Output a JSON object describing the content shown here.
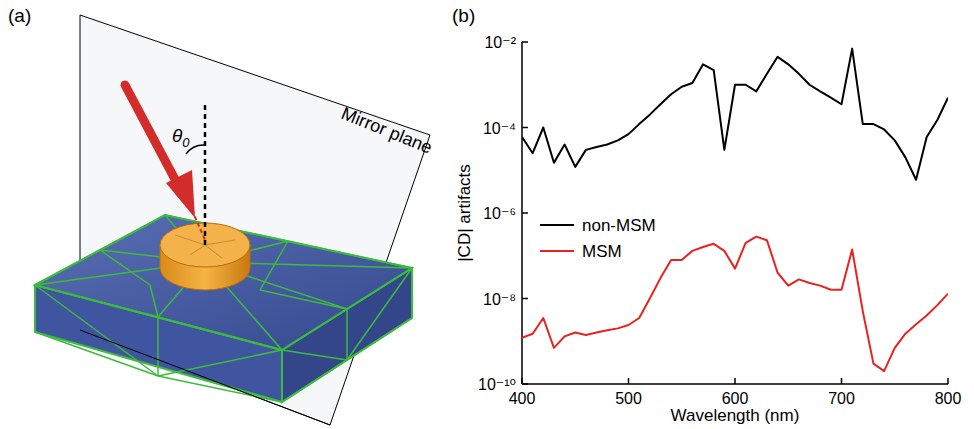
{
  "diagram": {
    "panel_label": "(a)",
    "labels": {
      "angle_symbol": "θ",
      "angle_subscript": "0",
      "mirror": "Mirror plane"
    }
  },
  "chart_data": {
    "type": "line",
    "title": "(b)",
    "x_label": "Wavelength (nm)",
    "y_label": "|CD| artifacts",
    "x": [
      400,
      410,
      420,
      430,
      440,
      450,
      460,
      470,
      480,
      490,
      500,
      510,
      520,
      530,
      540,
      550,
      560,
      570,
      580,
      590,
      600,
      610,
      620,
      630,
      640,
      650,
      660,
      670,
      680,
      690,
      700,
      710,
      720,
      730,
      740,
      750,
      760,
      770,
      780,
      790,
      800
    ],
    "series": [
      {
        "name": "non-MSM",
        "color": "#000000",
        "values": [
          6e-05,
          2.5e-05,
          0.0001,
          1.5e-05,
          4e-05,
          1.2e-05,
          3e-05,
          3.5e-05,
          4e-05,
          5e-05,
          7e-05,
          0.00012,
          0.0002,
          0.00035,
          0.0006,
          0.0009,
          0.0011,
          0.003,
          0.0022,
          3e-05,
          0.001,
          0.001,
          0.0007,
          0.0018,
          0.0045,
          0.003,
          0.0018,
          0.001,
          0.0007,
          0.0005,
          0.00035,
          0.007,
          0.00012,
          0.00012,
          9e-05,
          5e-05,
          2e-05,
          6e-06,
          6e-05,
          0.00015,
          0.0005
        ]
      },
      {
        "name": "MSM",
        "color": "#e8231f",
        "values": [
          1.2e-09,
          1.5e-09,
          3.5e-09,
          7e-10,
          1.3e-09,
          1.6e-09,
          1.4e-09,
          1.6e-09,
          1.8e-09,
          2e-09,
          2.4e-09,
          3.5e-09,
          1e-08,
          3e-08,
          8e-08,
          8e-08,
          1.3e-07,
          1.6e-07,
          1.9e-07,
          1.3e-07,
          5e-08,
          2e-07,
          2.8e-07,
          2.3e-07,
          4e-08,
          2e-08,
          2.8e-08,
          2.3e-08,
          2e-08,
          1.6e-08,
          1.6e-08,
          1.4e-07,
          5e-09,
          3e-10,
          2e-10,
          7e-10,
          1.5e-09,
          2.5e-09,
          4e-09,
          7e-09,
          1.3e-08
        ]
      }
    ],
    "xlim": [
      400,
      800
    ],
    "xticks": [
      400,
      500,
      600,
      700,
      800
    ],
    "ylim": [
      1e-10,
      0.01
    ],
    "yticks": [
      {
        "value": 1e-10,
        "label": "10⁻¹⁰"
      },
      {
        "value": 1e-08,
        "label": "10⁻⁸"
      },
      {
        "value": 1e-06,
        "label": "10⁻⁶"
      },
      {
        "value": 0.0001,
        "label": "10⁻⁴"
      },
      {
        "value": 0.01,
        "label": "10⁻²"
      }
    ],
    "log": "y",
    "grid": false,
    "legend": "left"
  }
}
